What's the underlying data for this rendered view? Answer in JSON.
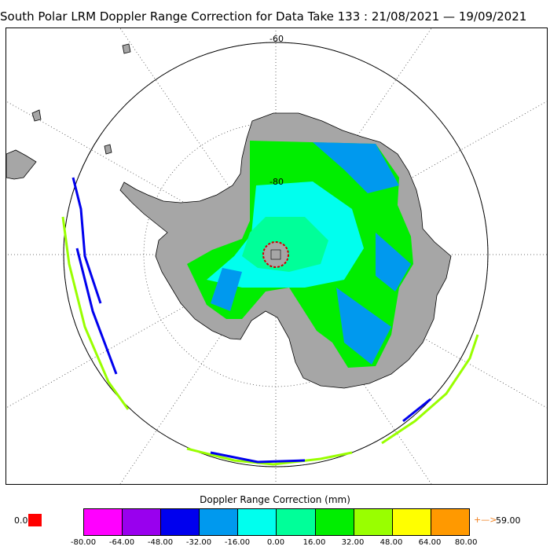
{
  "title": "South Polar LRM Doppler Range Correction for Data Take 133 : 21/08/2021 — 19/09/2021",
  "map": {
    "lat_labels": {
      "outer": "-60",
      "inner": "-80"
    },
    "land_color": "#a6a6a6",
    "pole_ring_color": "#cc0000"
  },
  "legend": {
    "title": "Doppler Range Correction (mm)",
    "under_value": "0.0",
    "under_color": "#ff0000",
    "over_arrow": "+—>",
    "over_value": "59.00",
    "colors": [
      "#ff00ff",
      "#9900ee",
      "#0000ee",
      "#0099ee",
      "#00ffee",
      "#00ff99",
      "#00ee00",
      "#99ff00",
      "#ffff00",
      "#ff9900"
    ],
    "ticks": [
      "-80.00",
      "-64.00",
      "-48.00",
      "-32.00",
      "-16.00",
      "0.00",
      "16.00",
      "32.00",
      "48.00",
      "64.00",
      "80.00"
    ]
  }
}
